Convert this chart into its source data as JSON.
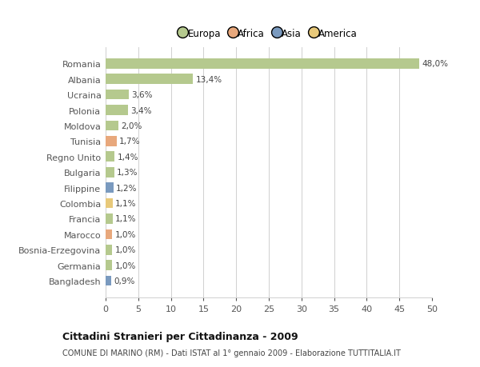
{
  "categories": [
    "Romania",
    "Albania",
    "Ucraina",
    "Polonia",
    "Moldova",
    "Tunisia",
    "Regno Unito",
    "Bulgaria",
    "Filippine",
    "Colombia",
    "Francia",
    "Marocco",
    "Bosnia-Erzegovina",
    "Germania",
    "Bangladesh"
  ],
  "values": [
    48.0,
    13.4,
    3.6,
    3.4,
    2.0,
    1.7,
    1.4,
    1.3,
    1.2,
    1.1,
    1.1,
    1.0,
    1.0,
    1.0,
    0.9
  ],
  "labels": [
    "48,0%",
    "13,4%",
    "3,6%",
    "3,4%",
    "2,0%",
    "1,7%",
    "1,4%",
    "1,3%",
    "1,2%",
    "1,1%",
    "1,1%",
    "1,0%",
    "1,0%",
    "1,0%",
    "0,9%"
  ],
  "colors": [
    "#b5c98e",
    "#b5c98e",
    "#b5c98e",
    "#b5c98e",
    "#b5c98e",
    "#e8a87c",
    "#b5c98e",
    "#b5c98e",
    "#7a9abf",
    "#e8c97a",
    "#b5c98e",
    "#e8a87c",
    "#b5c98e",
    "#b5c98e",
    "#7a9abf"
  ],
  "legend_labels": [
    "Europa",
    "Africa",
    "Asia",
    "America"
  ],
  "legend_colors": [
    "#b5c98e",
    "#e8a87c",
    "#7a9abf",
    "#e8c97a"
  ],
  "title": "Cittadini Stranieri per Cittadinanza - 2009",
  "subtitle": "COMUNE DI MARINO (RM) - Dati ISTAT al 1° gennaio 2009 - Elaborazione TUTTITALIA.IT",
  "xlim": [
    0,
    50
  ],
  "xticks": [
    0,
    5,
    10,
    15,
    20,
    25,
    30,
    35,
    40,
    45,
    50
  ],
  "background_color": "#ffffff",
  "grid_color": "#d0d0d0"
}
